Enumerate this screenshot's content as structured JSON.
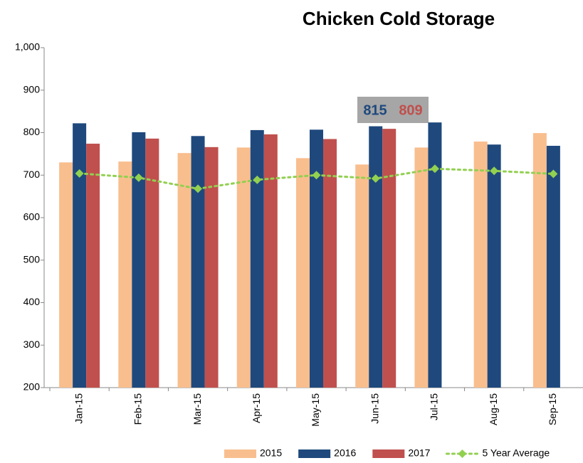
{
  "chart_data": {
    "type": "bar",
    "title": "Chicken Cold Storage",
    "categories": [
      "Jan-15",
      "Feb-15",
      "Mar-15",
      "Apr-15",
      "May-15",
      "Jun-15",
      "Jul-15",
      "Aug-15",
      "Sep-15"
    ],
    "series": [
      {
        "name": "2015",
        "color": "#f9be8e",
        "values": [
          730,
          732,
          752,
          765,
          740,
          725,
          765,
          779,
          799
        ]
      },
      {
        "name": "2016",
        "color": "#1f497d",
        "values": [
          822,
          801,
          792,
          806,
          807,
          815,
          824,
          772,
          769
        ]
      },
      {
        "name": "2017",
        "color": "#c0504d",
        "values": [
          774,
          786,
          766,
          796,
          785,
          809,
          null,
          null,
          null
        ]
      },
      {
        "name": "5 Year Average",
        "type": "line",
        "color": "#92d050",
        "values": [
          704,
          694,
          668,
          689,
          700,
          692,
          715,
          710,
          703
        ]
      }
    ],
    "ylim": [
      200,
      1000
    ],
    "yticks": [
      200,
      300,
      400,
      500,
      600,
      700,
      800,
      900,
      {
        "value": 1000,
        "label": "1,000"
      }
    ],
    "grid": false,
    "legend": "bottom"
  }
}
